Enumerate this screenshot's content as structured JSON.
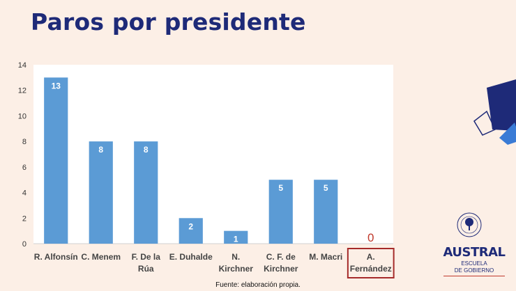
{
  "slide": {
    "title": "Paros por presidente",
    "source_note": "Fuente: elaboración propia.",
    "logo": {
      "university": "AUSTRAL",
      "school_line1": "ESCUELA",
      "school_line2": "DE GOBIERNO"
    }
  },
  "colors": {
    "title": "#1e2a78",
    "bar": "#5b9bd5",
    "highlight_box": "#a52a2a",
    "zero_label": "#c0392b",
    "background": "#fcefe6"
  },
  "chart_data": {
    "type": "bar",
    "title": "",
    "xlabel": "",
    "ylabel": "",
    "ylim": [
      0,
      14
    ],
    "yticks": [
      0,
      2,
      4,
      6,
      8,
      10,
      12,
      14
    ],
    "grid": false,
    "legend": "none",
    "categories": [
      [
        "R. Alfonsín"
      ],
      [
        "C. Menem"
      ],
      [
        "F. De la",
        "Rúa"
      ],
      [
        "E. Duhalde"
      ],
      [
        "N.",
        "Kirchner"
      ],
      [
        "C. F. de",
        "Kirchner"
      ],
      [
        "M. Macri"
      ],
      [
        "A.",
        "Fernández"
      ]
    ],
    "values": [
      13,
      8,
      8,
      2,
      1,
      5,
      5,
      0
    ],
    "highlighted_category": 7
  }
}
